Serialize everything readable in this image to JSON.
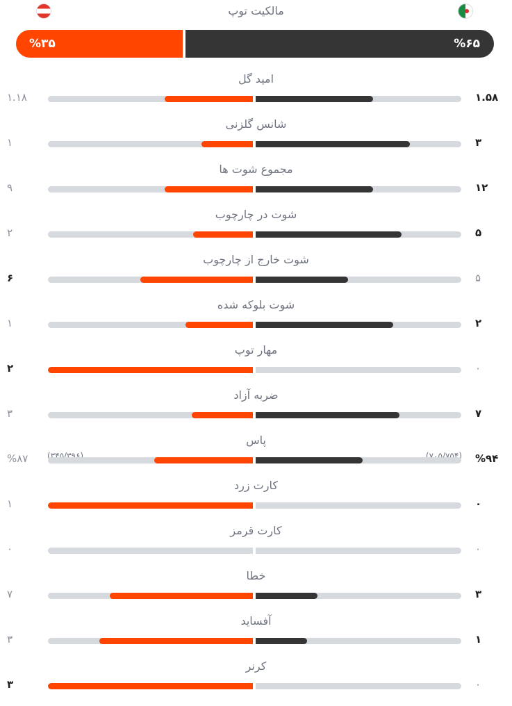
{
  "possession": {
    "title": "مالکیت توپ",
    "left_value": "%۳۵",
    "right_value": "%۶۵",
    "left_fraction": 0.35,
    "right_fraction": 0.65,
    "left_flag": "austria-flag-icon",
    "right_flag": "algeria-flag-icon"
  },
  "colors": {
    "left_team": "#ff4500",
    "right_team": "#353535",
    "track": "#d6dadf"
  },
  "stats": [
    {
      "label": "امید گل",
      "left": "۱.۱۸",
      "right": "۱.۵۸",
      "left_fill": 0.43,
      "right_fill": 0.57,
      "left_bold": false,
      "right_bold": true
    },
    {
      "label": "شانس گلزنی",
      "left": "۱",
      "right": "۳",
      "left_fill": 0.25,
      "right_fill": 0.75,
      "left_bold": false,
      "right_bold": true
    },
    {
      "label": "مجموع شوت ها",
      "left": "۹",
      "right": "۱۲",
      "left_fill": 0.43,
      "right_fill": 0.57,
      "left_bold": false,
      "right_bold": true
    },
    {
      "label": "شوت در چارچوب",
      "left": "۲",
      "right": "۵",
      "left_fill": 0.29,
      "right_fill": 0.71,
      "left_bold": false,
      "right_bold": true
    },
    {
      "label": "شوت خارج از چارچوب",
      "left": "۶",
      "right": "۵",
      "left_fill": 0.55,
      "right_fill": 0.45,
      "left_bold": true,
      "right_bold": false
    },
    {
      "label": "شوت بلوکه شده",
      "left": "۱",
      "right": "۲",
      "left_fill": 0.33,
      "right_fill": 0.67,
      "left_bold": false,
      "right_bold": true
    },
    {
      "label": "مهار توپ",
      "left": "۲",
      "right": "۰",
      "left_fill": 1.0,
      "right_fill": 0.0,
      "left_bold": true,
      "right_bold": false
    },
    {
      "label": "ضربه آزاد",
      "left": "۳",
      "right": "۷",
      "left_fill": 0.3,
      "right_fill": 0.7,
      "left_bold": false,
      "right_bold": true
    },
    {
      "label": "پاس",
      "left": "%۸۷",
      "right": "%۹۴",
      "left_sub": "(۳۴۵/۳۹۶)",
      "right_sub": "(۷۰۵/۷۵۴)",
      "left_fill": 0.48,
      "right_fill": 0.52,
      "left_bold": false,
      "right_bold": true
    },
    {
      "label": "کارت زرد",
      "left": "۱",
      "right": "۰",
      "left_fill": 1.0,
      "right_fill": 0.0,
      "left_bold": false,
      "right_bold": true
    },
    {
      "label": "کارت قرمز",
      "left": "۰",
      "right": "۰",
      "left_fill": 0.0,
      "right_fill": 0.0,
      "left_bold": false,
      "right_bold": false
    },
    {
      "label": "خطا",
      "left": "۷",
      "right": "۳",
      "left_fill": 0.7,
      "right_fill": 0.3,
      "left_bold": false,
      "right_bold": true
    },
    {
      "label": "آفساید",
      "left": "۳",
      "right": "۱",
      "left_fill": 0.75,
      "right_fill": 0.25,
      "left_bold": false,
      "right_bold": true
    },
    {
      "label": "کرنر",
      "left": "۳",
      "right": "۰",
      "left_fill": 1.0,
      "right_fill": 0.0,
      "left_bold": true,
      "right_bold": false
    }
  ]
}
